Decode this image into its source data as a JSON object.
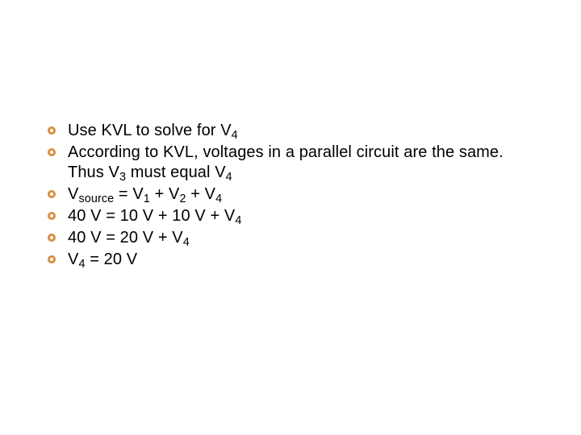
{
  "slide": {
    "bullet_color": "#d98b3a",
    "text_color": "#000000",
    "background_color": "#ffffff",
    "bullet_outer_radius": 5,
    "bullet_inner_radius": 2.2,
    "font_size_pt": 15,
    "bullets": [
      {
        "html": "Use KVL to solve for V<sub>4</sub>"
      },
      {
        "html": "According to KVL, voltages in a parallel circuit are the same. Thus V<sub>3</sub> must equal V<sub>4</sub>"
      },
      {
        "html": "V<sub>source</sub> = V<sub>1</sub> + V<sub>2</sub> + V<sub>4</sub>"
      },
      {
        "html": "40 V = 10 V + 10 V + V<sub>4</sub>"
      },
      {
        "html": "40 V = 20 V + V<sub>4</sub>"
      },
      {
        "html": "V<sub>4</sub> = 20 V"
      }
    ]
  }
}
